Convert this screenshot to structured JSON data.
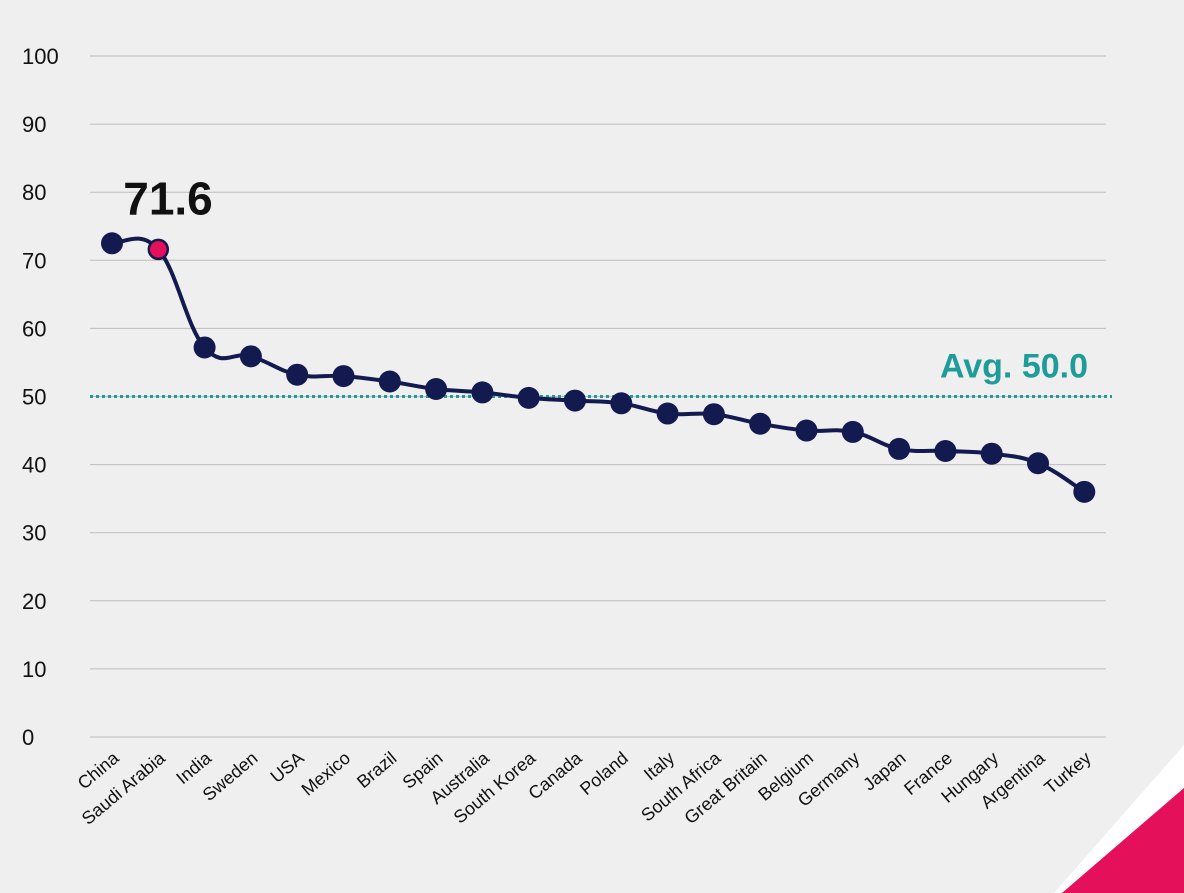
{
  "colors": {
    "background_panel": "#efefef",
    "line": "#131a4f",
    "highlight_point": "#e4105a",
    "average": "#1f9c99",
    "corner_accent": "#e4105a",
    "grid": "#bdbdbd"
  },
  "chart_data": {
    "type": "line",
    "title": "",
    "xlabel": "",
    "ylabel": "",
    "ylim": [
      0,
      100
    ],
    "yticks": [
      0,
      10,
      20,
      30,
      40,
      50,
      60,
      70,
      80,
      90,
      100
    ],
    "grid": "horizontal",
    "legend": "none",
    "categories": [
      "China",
      "Saudi Arabia",
      "India",
      "Sweden",
      "USA",
      "Mexico",
      "Brazil",
      "Spain",
      "Australia",
      "South Korea",
      "Canada",
      "Poland",
      "Italy",
      "South Africa",
      "Great Britain",
      "Belgium",
      "Germany",
      "Japan",
      "France",
      "Hungary",
      "Argentina",
      "Turkey"
    ],
    "series": [
      {
        "values": [
          72.5,
          71.6,
          57.2,
          55.9,
          53.2,
          53.0,
          52.2,
          51.1,
          50.6,
          49.8,
          49.4,
          49.0,
          47.5,
          47.4,
          46.0,
          45.0,
          44.8,
          42.3,
          42.0,
          41.6,
          40.2,
          36.0
        ]
      }
    ],
    "highlight": {
      "category": "Saudi Arabia",
      "label": "71.6"
    },
    "average": {
      "value": 50.0,
      "label": "Avg. 50.0"
    }
  }
}
